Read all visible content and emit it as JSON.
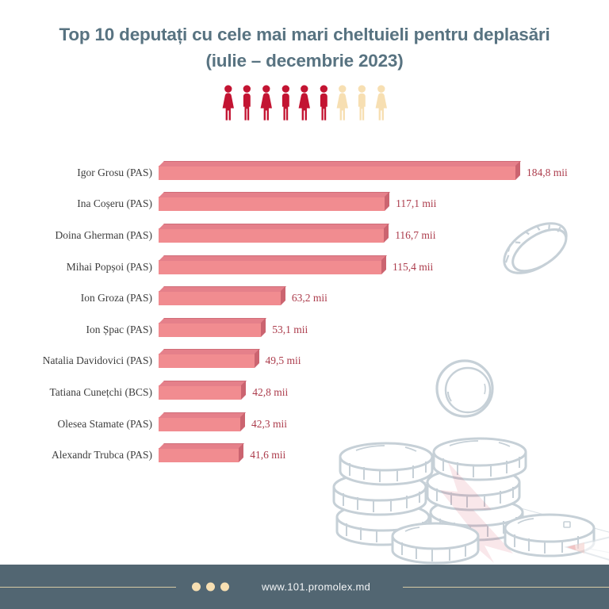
{
  "title": {
    "line1": "Top 10 deputați cu cele mai mari cheltuieli pentru deplasări",
    "line2": "(iulie – decembrie 2023)"
  },
  "people_icons": [
    {
      "type": "female",
      "color": "red"
    },
    {
      "type": "male",
      "color": "red"
    },
    {
      "type": "female",
      "color": "red"
    },
    {
      "type": "male",
      "color": "red"
    },
    {
      "type": "female",
      "color": "red"
    },
    {
      "type": "male",
      "color": "red"
    },
    {
      "type": "female",
      "color": "cream"
    },
    {
      "type": "male",
      "color": "cream"
    },
    {
      "type": "female",
      "color": "cream"
    }
  ],
  "chart_data": {
    "type": "bar",
    "orientation": "horizontal",
    "unit": "mii",
    "title": "Top 10 deputați cu cele mai mari cheltuieli pentru deplasări (iulie – decembrie 2023)",
    "categories": [
      "Igor Grosu (PAS)",
      "Ina Coșeru (PAS)",
      "Doina Gherman (PAS)",
      "Mihai Popșoi (PAS)",
      "Ion Groza (PAS)",
      "Ion Șpac (PAS)",
      "Natalia Davidovici (PAS)",
      "Tatiana Cunețchi (BCS)",
      "Olesea Stamate (PAS)",
      "Alexandr Trubca (PAS)"
    ],
    "values": [
      184.8,
      117.1,
      116.7,
      115.4,
      63.2,
      53.1,
      49.5,
      42.8,
      42.3,
      41.6
    ],
    "value_labels": [
      "184,8 mii",
      "117,1 mii",
      "116,7 mii",
      "115,4 mii",
      "63,2 mii",
      "53,1 mii",
      "49,5 mii",
      "42,8 mii",
      "42,3 mii",
      "41,6 mii"
    ],
    "xlim": [
      0,
      190
    ],
    "grid": false,
    "legend": false
  },
  "footer": {
    "url": "www.101.promolex.md"
  },
  "colors": {
    "title_color": "#587381",
    "bar_front": "#F18C90",
    "bar_top": "#E5808A",
    "bar_side": "#CB6470",
    "value_color": "#AC3C4C",
    "person_red": "#C31432",
    "cream": "#F7DFB2",
    "footer_bg": "#526672",
    "footer_line": "#D6C9A5",
    "decoration": "#C6D0D7"
  }
}
